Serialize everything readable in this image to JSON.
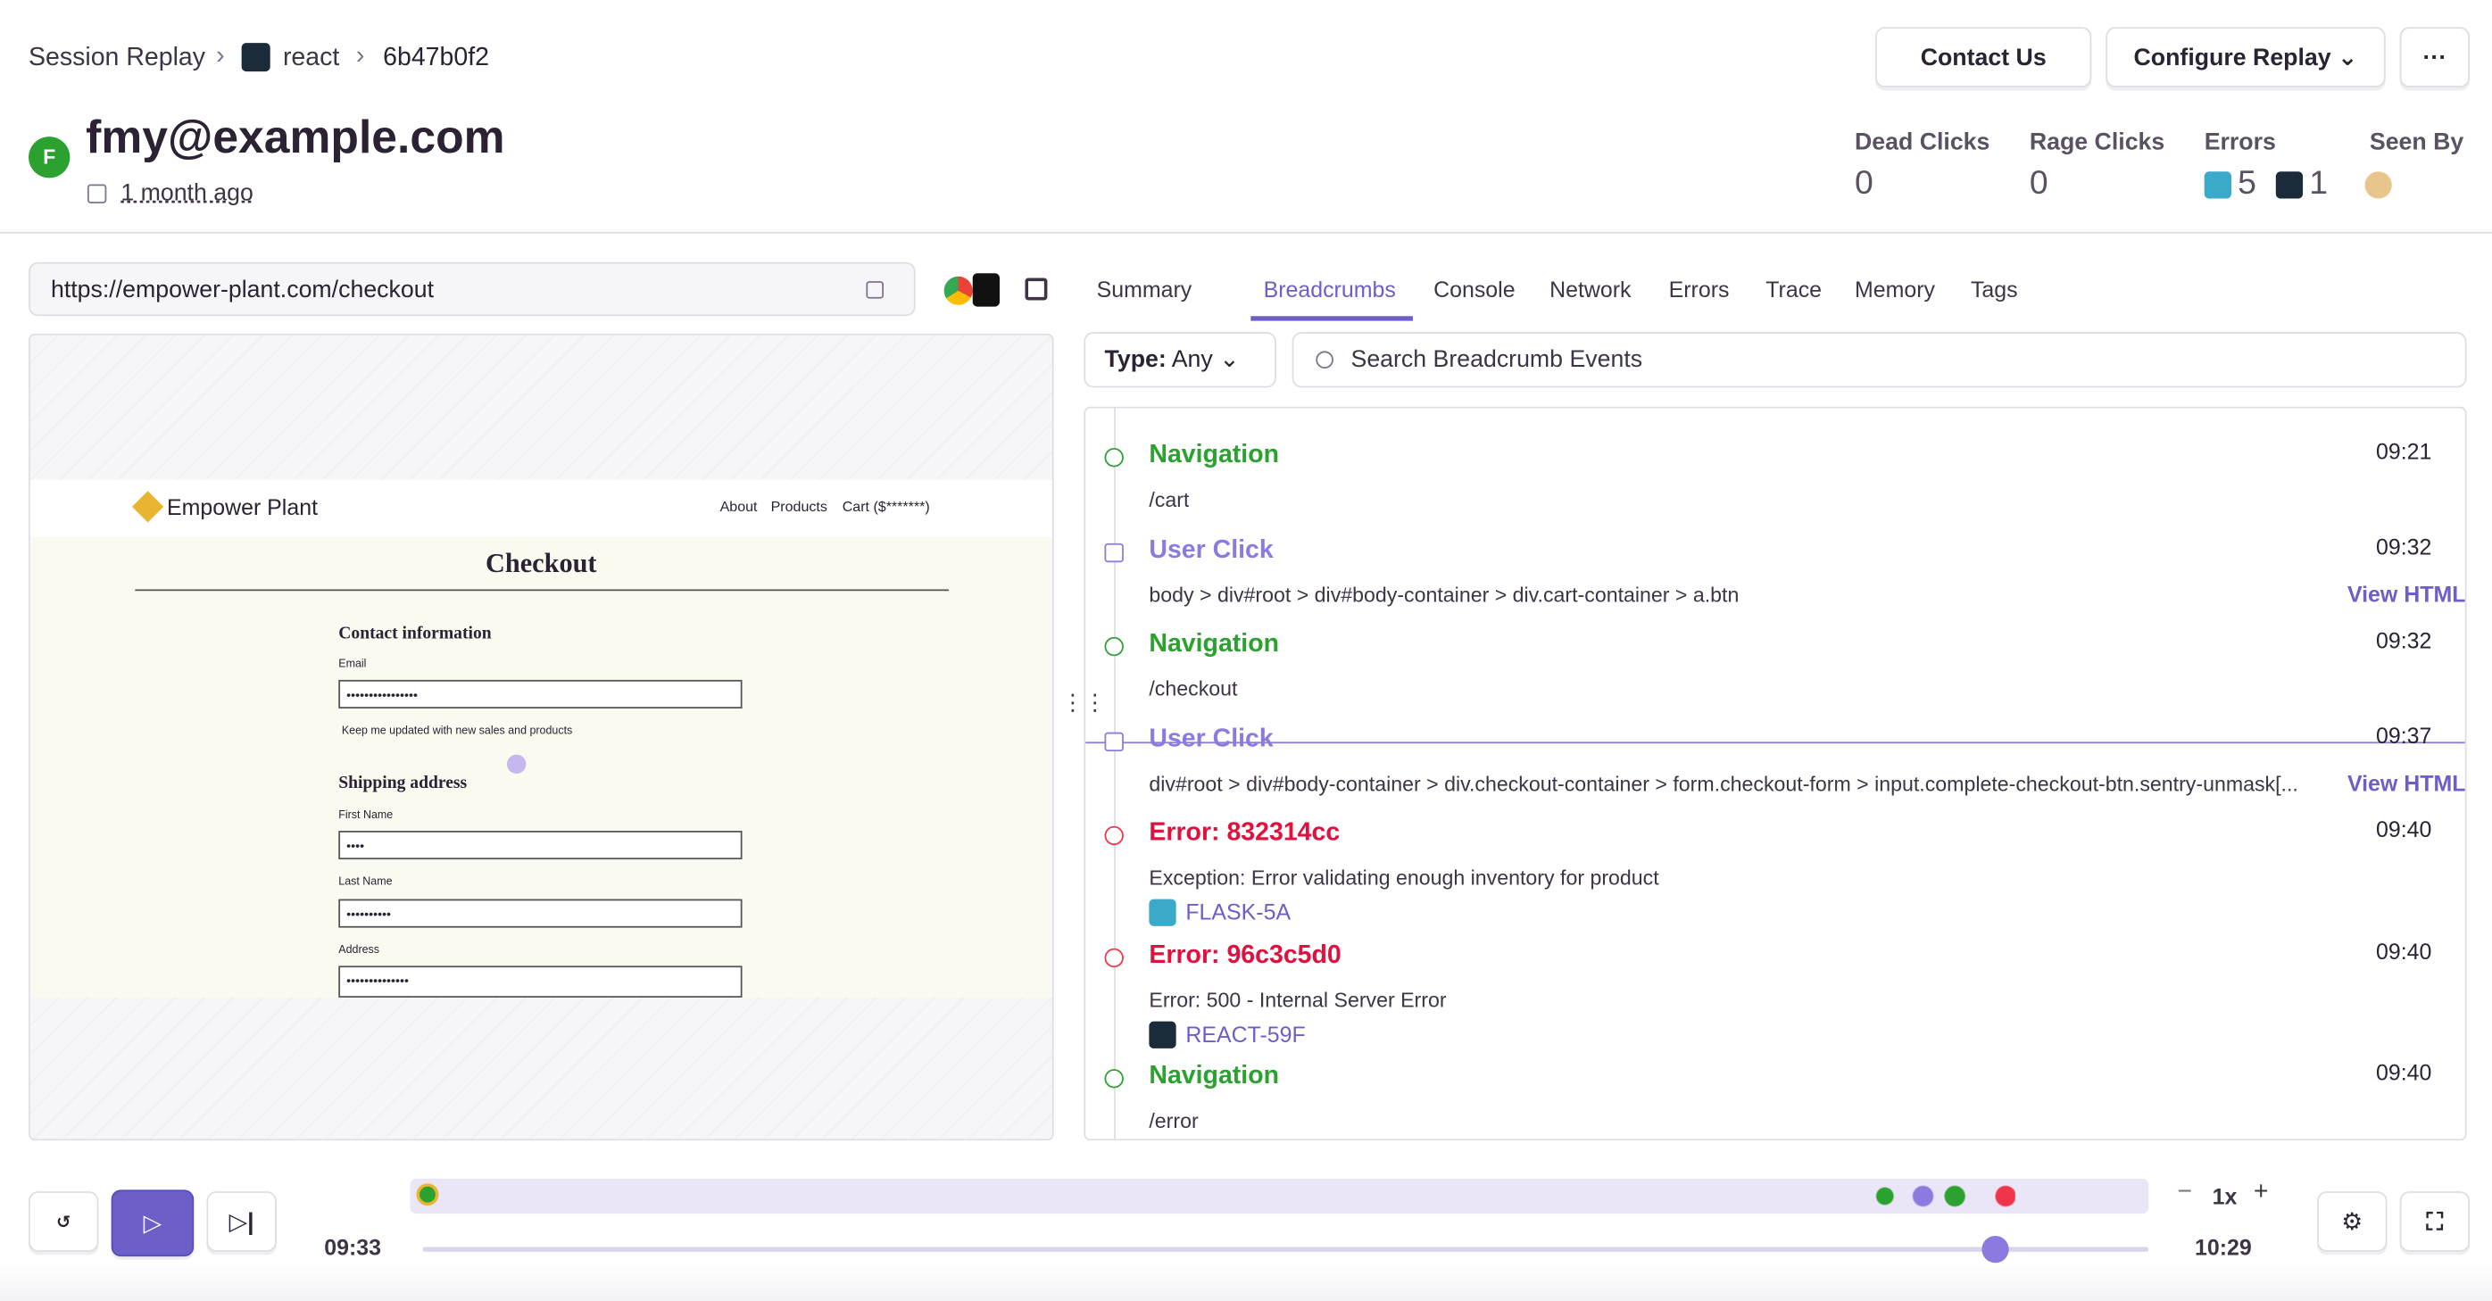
{
  "header": {
    "breadcrumb": [
      "Session Replay",
      "react",
      "6b47b0f2"
    ],
    "buttons": [
      "Contact Us",
      "Configure Replay"
    ],
    "avatar": "F",
    "user": "fmy@example.com",
    "time": "1 month ago"
  },
  "stats": {
    "dead_clicks_label": "Dead Clicks",
    "dead_clicks": 0,
    "rage_clicks_label": "Rage Clicks",
    "rage_clicks": 0,
    "errors_label": "Errors",
    "errors_backend": 5,
    "errors_frontend": 1,
    "seen_by_label": "Seen By"
  },
  "url": "https://empower-plant.com/checkout",
  "tabs": [
    "Summary",
    "Breadcrumbs",
    "Console",
    "Network",
    "Errors",
    "Trace",
    "Memory",
    "Tags"
  ],
  "filter": {
    "type_label": "Type:",
    "type_value": "Any",
    "search_placeholder": "Search Breadcrumb Events"
  },
  "replay": {
    "brand": "Empower Plant",
    "nav": [
      "About",
      "Products",
      "Cart ($*******)"
    ],
    "heading": "Checkout",
    "contact": "Contact information",
    "email": "Email",
    "keep": "Keep me updated with new sales and products",
    "shipping": "Shipping address",
    "first": "First Name",
    "last": "Last Name",
    "address": "Address"
  },
  "breadcrumbs": [
    {
      "kind": "nav",
      "title": "Navigation",
      "detail": "/cart",
      "time": "09:21"
    },
    {
      "kind": "click",
      "title": "User Click",
      "detail": "body > div#root > div#body-container > div.cart-container > a.btn",
      "time": "09:32",
      "link": "View HTML"
    },
    {
      "kind": "nav",
      "title": "Navigation",
      "detail": "/checkout",
      "time": "09:32"
    },
    {
      "kind": "click",
      "title": "User Click",
      "detail": "div#root > div#body-container > div.checkout-container > form.checkout-form > input.complete-checkout-btn.sentry-unmask[...",
      "time": "09:37",
      "link": "View HTML"
    },
    {
      "kind": "error",
      "title": "Error: 832314cc",
      "detail": "Exception: Error validating enough inventory for product",
      "issue": "FLASK-5A",
      "time": "09:40"
    },
    {
      "kind": "error",
      "title": "Error: 96c3c5d0",
      "detail": "Error: 500 - Internal Server Error",
      "issue": "REACT-59F",
      "time": "09:40"
    },
    {
      "kind": "nav",
      "title": "Navigation",
      "detail": "/error",
      "time": "09:40"
    }
  ],
  "player": {
    "current": "09:33",
    "total": "10:29",
    "speed": "1x"
  }
}
